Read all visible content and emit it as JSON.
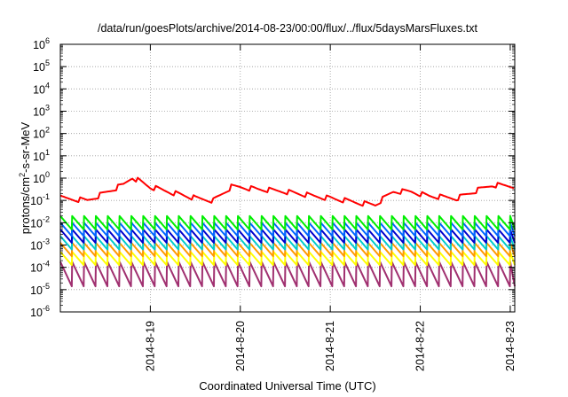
{
  "chart_data": {
    "type": "line",
    "title": "/data/run/goesPlots/archive/2014-08-23/00:00/flux/../flux/5daysMarsFluxes.txt",
    "xlabel": "Coordinated Universal Time (UTC)",
    "ylabel": "protons/cm²-s-sr-MeV",
    "ylabel_parts": {
      "pre": "protons/cm",
      "sup": "2",
      "post": "-s-sr-MeV"
    },
    "log_y": true,
    "ylim_exp": [
      -6,
      6
    ],
    "y_ticks": [
      {
        "base": "10",
        "exp": "6",
        "e": 6
      },
      {
        "base": "10",
        "exp": "5",
        "e": 5
      },
      {
        "base": "10",
        "exp": "4",
        "e": 4
      },
      {
        "base": "10",
        "exp": "3",
        "e": 3
      },
      {
        "base": "10",
        "exp": "2",
        "e": 2
      },
      {
        "base": "10",
        "exp": "1",
        "e": 1
      },
      {
        "base": "10",
        "exp": "0",
        "e": 0
      },
      {
        "base": "10",
        "exp": "-1",
        "e": -1
      },
      {
        "base": "10",
        "exp": "-2",
        "e": -2
      },
      {
        "base": "10",
        "exp": "-3",
        "e": -3
      },
      {
        "base": "10",
        "exp": "-4",
        "e": -4
      },
      {
        "base": "10",
        "exp": "-5",
        "e": -5
      },
      {
        "base": "10",
        "exp": "-6",
        "e": -6
      }
    ],
    "xlim_days": [
      18.0,
      23.05
    ],
    "x_ticks": [
      {
        "label": "2014-8-19",
        "day": 19
      },
      {
        "label": "2014-8-20",
        "day": 20
      },
      {
        "label": "2014-8-21",
        "day": 21
      },
      {
        "label": "2014-8-22",
        "day": 22
      },
      {
        "label": "2014-8-23",
        "day": 23
      }
    ],
    "grid": true,
    "sawtooth": {
      "teeth_per_day": 7.6,
      "jump_dec": 0.6
    },
    "series": [
      {
        "color": "#ff0000",
        "profile": [
          [
            18.0,
            -0.9
          ],
          [
            18.3,
            -1.0
          ],
          [
            18.7,
            -0.3
          ],
          [
            18.8,
            0.05
          ],
          [
            19.0,
            -0.4
          ],
          [
            19.5,
            -0.9
          ],
          [
            19.7,
            -1.0
          ],
          [
            19.9,
            -0.4
          ],
          [
            20.0,
            -0.4
          ],
          [
            20.2,
            -0.5
          ],
          [
            20.5,
            -0.6
          ],
          [
            20.8,
            -0.8
          ],
          [
            21.0,
            -0.9
          ],
          [
            21.3,
            -1.1
          ],
          [
            21.5,
            -1.2
          ],
          [
            21.7,
            -0.6
          ],
          [
            21.9,
            -0.6
          ],
          [
            22.1,
            -0.8
          ],
          [
            22.4,
            -0.9
          ],
          [
            22.6,
            -0.6
          ],
          [
            22.8,
            -0.3
          ],
          [
            23.05,
            -0.35
          ]
        ],
        "ripple": 0.12
      },
      {
        "color": "#00ee00",
        "profile": [
          [
            18.0,
            -2.0
          ],
          [
            23.05,
            -2.0
          ]
        ]
      },
      {
        "color": "#0066ff",
        "profile": [
          [
            18.0,
            -2.3
          ],
          [
            23.05,
            -2.3
          ]
        ]
      },
      {
        "color": "#0000cc",
        "profile": [
          [
            18.0,
            -2.6
          ],
          [
            23.05,
            -2.6
          ]
        ]
      },
      {
        "color": "#00cccc",
        "profile": [
          [
            18.0,
            -2.9
          ],
          [
            23.05,
            -2.9
          ]
        ]
      },
      {
        "color": "#ff9900",
        "profile": [
          [
            18.0,
            -3.2
          ],
          [
            23.05,
            -3.2
          ]
        ]
      },
      {
        "color": "#ffff00",
        "profile": [
          [
            18.0,
            -3.6
          ],
          [
            23.05,
            -3.6
          ]
        ]
      },
      {
        "color": "#a03070",
        "profile": [
          [
            18.0,
            -4.3
          ],
          [
            23.05,
            -4.3
          ]
        ],
        "jump": 1.1
      }
    ]
  }
}
